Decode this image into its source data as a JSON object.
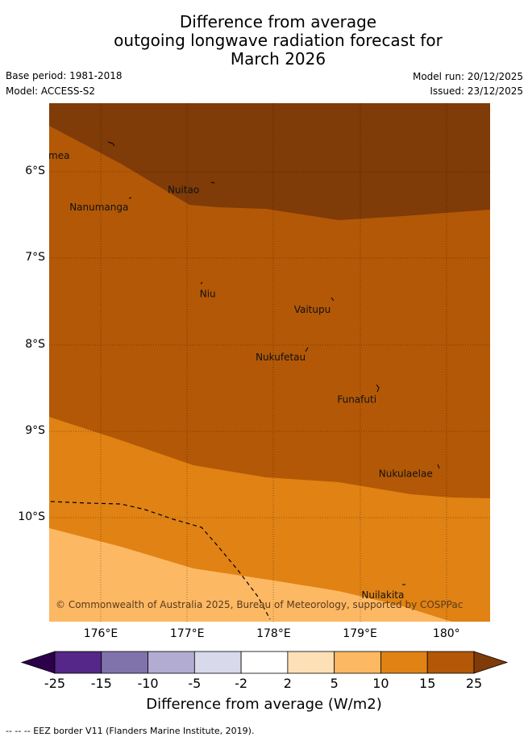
{
  "title": {
    "line1": "Difference from average",
    "line2": "outgoing longwave radiation forecast for",
    "line3": "March 2026"
  },
  "meta": {
    "base_period": "Base period: 1981-2018",
    "model": "Model: ACCESS-S2",
    "model_run": "Model run: 20/12/2025",
    "issued": "Issued: 23/12/2025"
  },
  "map": {
    "lat_labels": [
      "6°S",
      "7°S",
      "8°S",
      "9°S",
      "10°S"
    ],
    "lon_labels": [
      "176°E",
      "177°E",
      "178°E",
      "179°E",
      "180°"
    ],
    "places": [
      {
        "name": "Nanumea",
        "lon": 175.65,
        "lat": -5.7
      },
      {
        "name": "Nuitao",
        "lon": 177.15,
        "lat": -6.1
      },
      {
        "name": "Nanumanga",
        "lon": 176.33,
        "lat": -6.3
      },
      {
        "name": "Niu",
        "lon": 177.34,
        "lat": -7.3
      },
      {
        "name": "Vaitupu",
        "lon": 178.67,
        "lat": -7.48
      },
      {
        "name": "Nukufetau",
        "lon": 178.38,
        "lat": -8.03
      },
      {
        "name": "Funafuti",
        "lon": 179.2,
        "lat": -8.52
      },
      {
        "name": "Nukulaelae",
        "lon": 179.85,
        "lat": -9.38
      },
      {
        "name": "Nuilakita",
        "lon": 179.52,
        "lat": -10.78
      }
    ],
    "copyright": "© Commonwealth of Australia 2025, Bureau of Meteorology, supported by COSPPac"
  },
  "colorbar": {
    "colors": [
      "#2d004b",
      "#542788",
      "#8073ac",
      "#b2abd2",
      "#d8daeb",
      "#ffffff",
      "#fee0b6",
      "#fdb863",
      "#e08214",
      "#b35806",
      "#7f3b08"
    ],
    "tick_labels": [
      "-25",
      "-15",
      "-10",
      "-5",
      "-2",
      "2",
      "5",
      "10",
      "15",
      "25"
    ],
    "title": "Difference from average (W/m2)"
  },
  "footer": "-- -- -- EEZ border V11 (Flanders Marine Institute, 2019)."
}
